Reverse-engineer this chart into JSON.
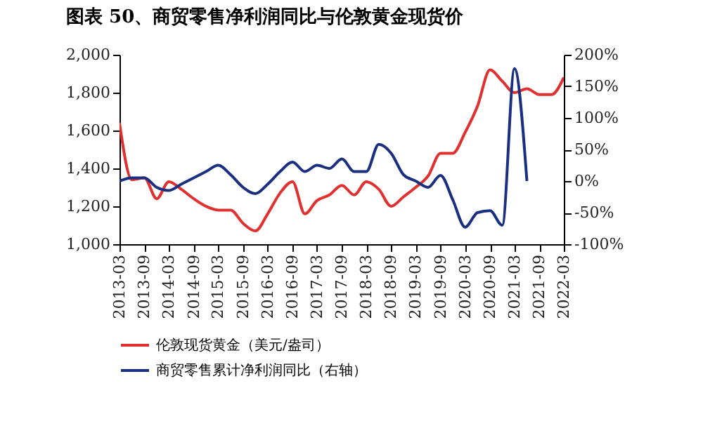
{
  "chart_data": {
    "type": "line",
    "title": "图表 50、商贸零售净利润同比与伦敦黄金现货价",
    "x": [
      "2013-03",
      "2013-06",
      "2013-09",
      "2013-12",
      "2014-03",
      "2014-06",
      "2014-09",
      "2014-12",
      "2015-03",
      "2015-06",
      "2015-09",
      "2015-12",
      "2016-03",
      "2016-06",
      "2016-09",
      "2016-12",
      "2017-03",
      "2017-06",
      "2017-09",
      "2017-12",
      "2018-03",
      "2018-06",
      "2018-09",
      "2018-12",
      "2019-03",
      "2019-06",
      "2019-09",
      "2019-12",
      "2020-03",
      "2020-06",
      "2020-09",
      "2020-12",
      "2021-03",
      "2021-06",
      "2021-09",
      "2021-12",
      "2022-03"
    ],
    "series": [
      {
        "name": "伦敦现货黄金（美元/盎司）",
        "color": "#e03030",
        "values": [
          1640,
          1340,
          1350,
          1240,
          1330,
          1290,
          1240,
          1200,
          1180,
          1180,
          1110,
          1070,
          1160,
          1270,
          1330,
          1160,
          1230,
          1260,
          1310,
          1260,
          1330,
          1290,
          1200,
          1250,
          1300,
          1360,
          1480,
          1480,
          1590,
          1730,
          1920,
          1860,
          1800,
          1820,
          1790,
          1790,
          1880
        ]
      },
      {
        "name": "商贸零售累计净利润同比（右轴）",
        "color": "#1a2f80",
        "axis": "y2",
        "values": [
          0,
          5,
          5,
          -10,
          -15,
          -5,
          5,
          15,
          25,
          10,
          -10,
          -20,
          -5,
          15,
          30,
          15,
          25,
          20,
          35,
          15,
          15,
          58,
          44,
          10,
          0,
          -10,
          9,
          -30,
          -73,
          -50,
          -47,
          -70,
          178,
          0,
          null,
          null,
          null
        ]
      }
    ],
    "ylim": [
      1000,
      2000
    ],
    "yticks": [
      {
        "value": 1000,
        "label": "1,000"
      },
      {
        "value": 1200,
        "label": "1,200"
      },
      {
        "value": 1400,
        "label": "1,400"
      },
      {
        "value": 1600,
        "label": "1,600"
      },
      {
        "value": 1800,
        "label": "1,800"
      },
      {
        "value": 2000,
        "label": "2,000"
      }
    ],
    "y2lim": [
      -100,
      200
    ],
    "y2ticks": [
      {
        "value": -100,
        "label": "-100%"
      },
      {
        "value": -50,
        "label": "-50%"
      },
      {
        "value": 0,
        "label": "0%"
      },
      {
        "value": 50,
        "label": "50%"
      },
      {
        "value": 100,
        "label": "100%"
      },
      {
        "value": 150,
        "label": "150%"
      },
      {
        "value": 200,
        "label": "200%"
      }
    ],
    "xlim": [
      "2013-03",
      "2022-03"
    ],
    "xticks": [
      "2013-03",
      "2013-09",
      "2014-03",
      "2014-09",
      "2015-03",
      "2015-09",
      "2016-03",
      "2016-09",
      "2017-03",
      "2017-09",
      "2018-03",
      "2018-09",
      "2019-03",
      "2019-09",
      "2020-03",
      "2020-09",
      "2021-03",
      "2021-09",
      "2022-03"
    ],
    "legend": "bottom"
  }
}
